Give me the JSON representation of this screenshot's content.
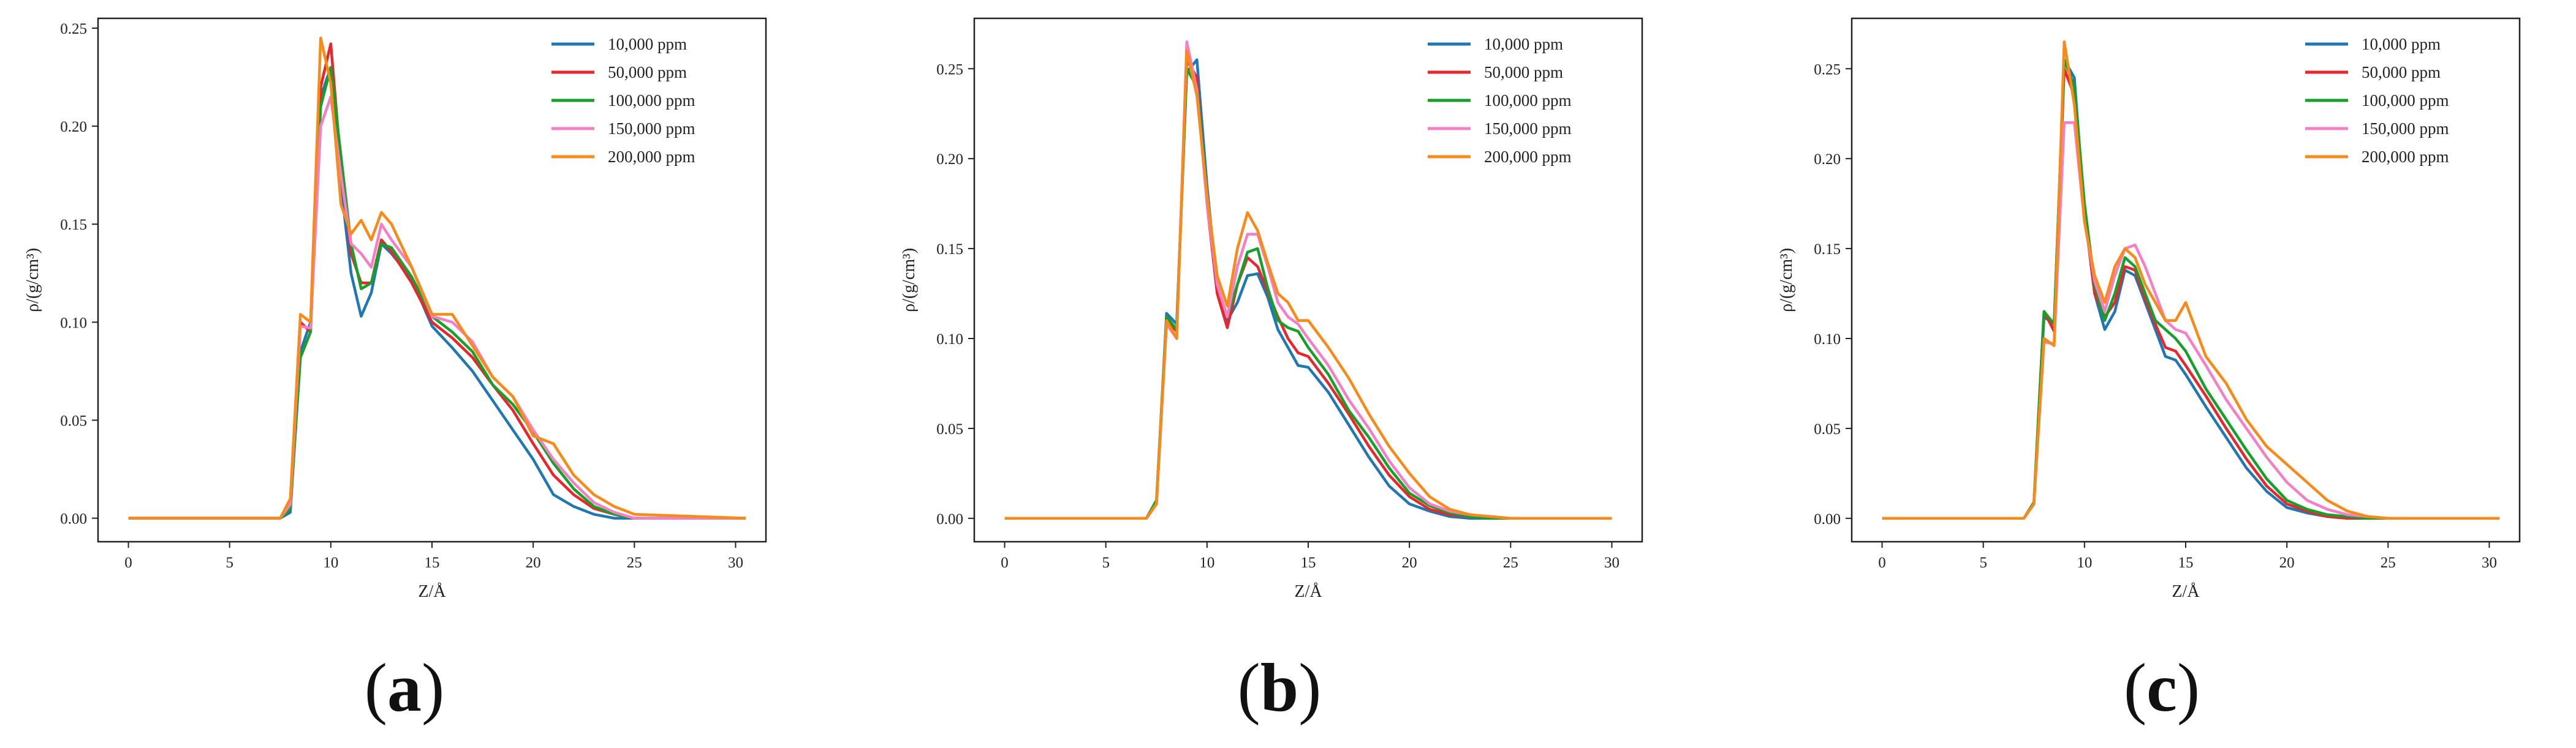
{
  "figure": {
    "colors": {
      "10,000 ppm": "#1f77b4",
      "50,000 ppm": "#e8262b",
      "100,000 ppm": "#16a02a",
      "150,000 ppm": "#f47fc5",
      "200,000 ppm": "#f78a19"
    }
  },
  "chart_data": [
    {
      "panel_label": "a",
      "type": "line",
      "xlabel": "Z/Å",
      "ylabel": "ρ/(g/cm³)",
      "xlim": [
        -1.5,
        31.5
      ],
      "ylim": [
        -0.012,
        0.255
      ],
      "xticks": [
        "0",
        "5",
        "10",
        "15",
        "20",
        "25",
        "30"
      ],
      "yticks": [
        "0.00",
        "0.05",
        "0.10",
        "0.15",
        "0.20",
        "0.25"
      ],
      "legend_position": "top-right",
      "grid": false,
      "series": [
        {
          "name": "10,000 ppm",
          "color": "#1f77b4",
          "x": [
            0,
            7.5,
            8.0,
            8.5,
            9.0,
            9.5,
            10.0,
            10.5,
            11.0,
            11.5,
            12.0,
            12.5,
            13.0,
            14.0,
            15.0,
            16.0,
            17.0,
            18.0,
            19.0,
            20.0,
            21.0,
            22.0,
            23.0,
            24.0,
            25.0,
            30.5
          ],
          "values": [
            0,
            0,
            0.003,
            0.085,
            0.1,
            0.215,
            0.23,
            0.17,
            0.125,
            0.103,
            0.115,
            0.14,
            0.135,
            0.122,
            0.098,
            0.087,
            0.075,
            0.06,
            0.045,
            0.03,
            0.012,
            0.006,
            0.002,
            0.0,
            0.0,
            0
          ]
        },
        {
          "name": "50,000 ppm",
          "color": "#e8262b",
          "x": [
            0,
            7.5,
            8.0,
            8.5,
            9.0,
            9.5,
            10.0,
            10.5,
            11.0,
            11.5,
            12.0,
            12.5,
            13.0,
            14.0,
            15.0,
            16.0,
            17.0,
            18.0,
            19.0,
            20.0,
            21.0,
            22.0,
            23.0,
            24.0,
            25.0,
            30.5
          ],
          "values": [
            0,
            0,
            0.005,
            0.1,
            0.095,
            0.22,
            0.242,
            0.18,
            0.135,
            0.12,
            0.12,
            0.142,
            0.136,
            0.12,
            0.1,
            0.092,
            0.082,
            0.068,
            0.055,
            0.038,
            0.022,
            0.012,
            0.005,
            0.002,
            0.0,
            0
          ]
        },
        {
          "name": "100,000 ppm",
          "color": "#16a02a",
          "x": [
            0,
            7.5,
            8.0,
            8.5,
            9.0,
            9.5,
            10.0,
            10.5,
            11.0,
            11.5,
            12.0,
            12.5,
            13.0,
            14.0,
            15.0,
            16.0,
            17.0,
            18.0,
            19.0,
            20.0,
            21.0,
            22.0,
            23.0,
            24.0,
            25.0,
            30.5
          ],
          "values": [
            0,
            0,
            0.005,
            0.082,
            0.095,
            0.21,
            0.23,
            0.185,
            0.14,
            0.117,
            0.12,
            0.14,
            0.138,
            0.123,
            0.103,
            0.095,
            0.085,
            0.068,
            0.058,
            0.044,
            0.028,
            0.015,
            0.006,
            0.002,
            0.0,
            0
          ]
        },
        {
          "name": "150,000 ppm",
          "color": "#f47fc5",
          "x": [
            0,
            7.5,
            8.0,
            8.5,
            9.0,
            9.5,
            10.0,
            10.5,
            11.0,
            11.5,
            12.0,
            12.5,
            13.0,
            14.0,
            15.0,
            16.0,
            17.0,
            18.0,
            19.0,
            20.0,
            21.0,
            22.0,
            23.0,
            24.0,
            25.0,
            30.5
          ],
          "values": [
            0,
            0,
            0.007,
            0.098,
            0.097,
            0.2,
            0.215,
            0.175,
            0.14,
            0.135,
            0.128,
            0.15,
            0.142,
            0.128,
            0.103,
            0.1,
            0.09,
            0.072,
            0.062,
            0.045,
            0.03,
            0.018,
            0.008,
            0.003,
            0.0,
            0
          ]
        },
        {
          "name": "200,000 ppm",
          "color": "#f78a19",
          "x": [
            0,
            7.5,
            8.0,
            8.5,
            9.0,
            9.5,
            10.0,
            10.5,
            11.0,
            11.5,
            12.0,
            12.5,
            13.0,
            14.0,
            15.0,
            16.0,
            17.0,
            18.0,
            19.0,
            20.0,
            21.0,
            22.0,
            23.0,
            24.0,
            25.0,
            30.5
          ],
          "values": [
            0,
            0,
            0.01,
            0.104,
            0.1,
            0.245,
            0.222,
            0.16,
            0.145,
            0.152,
            0.142,
            0.156,
            0.15,
            0.128,
            0.104,
            0.104,
            0.088,
            0.072,
            0.062,
            0.042,
            0.038,
            0.022,
            0.012,
            0.006,
            0.002,
            0
          ]
        }
      ]
    },
    {
      "panel_label": "b",
      "type": "line",
      "xlabel": "Z/Å",
      "ylabel": "ρ/(g/cm³)",
      "xlim": [
        -1.5,
        31.5
      ],
      "ylim": [
        -0.013,
        0.278
      ],
      "xticks": [
        "0",
        "5",
        "10",
        "15",
        "20",
        "25",
        "30"
      ],
      "yticks": [
        "0.00",
        "0.05",
        "0.10",
        "0.15",
        "0.20",
        "0.25"
      ],
      "legend_position": "top-right",
      "grid": false,
      "series": [
        {
          "name": "10,000 ppm",
          "color": "#1f77b4",
          "x": [
            0,
            7.0,
            7.5,
            8.0,
            8.5,
            9.0,
            9.5,
            10.0,
            10.5,
            11.0,
            11.5,
            12.0,
            12.5,
            13.0,
            13.5,
            14.0,
            14.5,
            15.0,
            16.0,
            17.0,
            18.0,
            19.0,
            20.0,
            21.0,
            22.0,
            23.0,
            24.0,
            25.0,
            30.0
          ],
          "values": [
            0,
            0,
            0.008,
            0.114,
            0.108,
            0.248,
            0.255,
            0.185,
            0.128,
            0.11,
            0.12,
            0.135,
            0.136,
            0.123,
            0.105,
            0.095,
            0.085,
            0.084,
            0.07,
            0.052,
            0.034,
            0.018,
            0.008,
            0.004,
            0.001,
            0.0,
            0.0,
            0.0,
            0
          ]
        },
        {
          "name": "50,000 ppm",
          "color": "#e8262b",
          "x": [
            0,
            7.0,
            7.5,
            8.0,
            8.5,
            9.0,
            9.5,
            10.0,
            10.5,
            11.0,
            11.5,
            12.0,
            12.5,
            13.0,
            13.5,
            14.0,
            14.5,
            15.0,
            16.0,
            17.0,
            18.0,
            19.0,
            20.0,
            21.0,
            22.0,
            23.0,
            24.0,
            25.0,
            30.0
          ],
          "values": [
            0,
            0,
            0.008,
            0.11,
            0.104,
            0.255,
            0.245,
            0.175,
            0.125,
            0.106,
            0.13,
            0.145,
            0.14,
            0.126,
            0.112,
            0.1,
            0.092,
            0.09,
            0.075,
            0.058,
            0.04,
            0.024,
            0.012,
            0.005,
            0.002,
            0.001,
            0.0,
            0.0,
            0
          ]
        },
        {
          "name": "100,000 ppm",
          "color": "#16a02a",
          "x": [
            0,
            7.0,
            7.5,
            8.0,
            8.5,
            9.0,
            9.5,
            10.0,
            10.5,
            11.0,
            11.5,
            12.0,
            12.5,
            13.0,
            13.5,
            14.0,
            14.5,
            15.0,
            16.0,
            17.0,
            18.0,
            19.0,
            20.0,
            21.0,
            22.0,
            23.0,
            24.0,
            25.0,
            30.0
          ],
          "values": [
            0,
            0,
            0.01,
            0.112,
            0.105,
            0.25,
            0.24,
            0.18,
            0.13,
            0.112,
            0.13,
            0.148,
            0.15,
            0.128,
            0.11,
            0.106,
            0.104,
            0.095,
            0.08,
            0.06,
            0.045,
            0.028,
            0.014,
            0.007,
            0.003,
            0.001,
            0.0,
            0.0,
            0
          ]
        },
        {
          "name": "150,000 ppm",
          "color": "#f47fc5",
          "x": [
            0,
            7.0,
            7.5,
            8.0,
            8.5,
            9.0,
            9.5,
            10.0,
            10.5,
            11.0,
            11.5,
            12.0,
            12.5,
            13.0,
            13.5,
            14.0,
            14.5,
            15.0,
            16.0,
            17.0,
            18.0,
            19.0,
            20.0,
            21.0,
            22.0,
            23.0,
            24.0,
            25.0,
            30.0
          ],
          "values": [
            0,
            0,
            0.008,
            0.108,
            0.1,
            0.265,
            0.238,
            0.175,
            0.13,
            0.112,
            0.14,
            0.158,
            0.158,
            0.14,
            0.12,
            0.112,
            0.108,
            0.1,
            0.085,
            0.066,
            0.05,
            0.032,
            0.017,
            0.008,
            0.004,
            0.002,
            0.001,
            0.0,
            0
          ]
        },
        {
          "name": "200,000 ppm",
          "color": "#f78a19",
          "x": [
            0,
            7.0,
            7.5,
            8.0,
            8.5,
            9.0,
            9.5,
            10.0,
            10.5,
            11.0,
            11.5,
            12.0,
            12.5,
            13.0,
            13.5,
            14.0,
            14.5,
            15.0,
            16.0,
            17.0,
            18.0,
            19.0,
            20.0,
            21.0,
            22.0,
            23.0,
            24.0,
            25.0,
            30.0
          ],
          "values": [
            0,
            0,
            0.008,
            0.11,
            0.1,
            0.26,
            0.235,
            0.18,
            0.135,
            0.118,
            0.15,
            0.17,
            0.16,
            0.142,
            0.125,
            0.12,
            0.11,
            0.11,
            0.095,
            0.078,
            0.058,
            0.04,
            0.025,
            0.012,
            0.005,
            0.002,
            0.001,
            0.0,
            0
          ]
        }
      ]
    },
    {
      "panel_label": "c",
      "type": "line",
      "xlabel": "Z/Å",
      "ylabel": "ρ/(g/cm³)",
      "xlim": [
        -1.5,
        31.5
      ],
      "ylim": [
        -0.013,
        0.278
      ],
      "xticks": [
        "0",
        "5",
        "10",
        "15",
        "20",
        "25",
        "30"
      ],
      "yticks": [
        "0.00",
        "0.05",
        "0.10",
        "0.15",
        "0.20",
        "0.25"
      ],
      "legend_position": "top-right",
      "grid": false,
      "series": [
        {
          "name": "10,000 ppm",
          "color": "#1f77b4",
          "x": [
            0,
            7.0,
            7.5,
            8.0,
            8.5,
            9.0,
            9.5,
            10.0,
            10.5,
            11.0,
            11.5,
            12.0,
            12.5,
            13.0,
            13.5,
            14.0,
            14.5,
            15.0,
            16.0,
            17.0,
            18.0,
            19.0,
            20.0,
            21.0,
            22.0,
            23.0,
            24.0,
            25.0,
            30.5
          ],
          "values": [
            0,
            0,
            0.008,
            0.112,
            0.108,
            0.255,
            0.245,
            0.17,
            0.125,
            0.105,
            0.115,
            0.138,
            0.135,
            0.12,
            0.105,
            0.09,
            0.088,
            0.08,
            0.062,
            0.045,
            0.028,
            0.015,
            0.006,
            0.003,
            0.001,
            0.0,
            0.0,
            0.0,
            0
          ]
        },
        {
          "name": "50,000 ppm",
          "color": "#e8262b",
          "x": [
            0,
            7.0,
            7.5,
            8.0,
            8.5,
            9.0,
            9.5,
            10.0,
            10.5,
            11.0,
            11.5,
            12.0,
            12.5,
            13.0,
            13.5,
            14.0,
            14.5,
            15.0,
            16.0,
            17.0,
            18.0,
            19.0,
            20.0,
            21.0,
            22.0,
            23.0,
            24.0,
            25.0,
            30.5
          ],
          "values": [
            0,
            0,
            0.008,
            0.115,
            0.104,
            0.25,
            0.235,
            0.17,
            0.125,
            0.112,
            0.12,
            0.14,
            0.138,
            0.122,
            0.108,
            0.095,
            0.093,
            0.085,
            0.068,
            0.05,
            0.033,
            0.018,
            0.008,
            0.004,
            0.001,
            0.0,
            0.0,
            0.0,
            0
          ]
        },
        {
          "name": "100,000 ppm",
          "color": "#16a02a",
          "x": [
            0,
            7.0,
            7.5,
            8.0,
            8.5,
            9.0,
            9.5,
            10.0,
            10.5,
            11.0,
            11.5,
            12.0,
            12.5,
            13.0,
            13.5,
            14.0,
            14.5,
            15.0,
            16.0,
            17.0,
            18.0,
            19.0,
            20.0,
            21.0,
            22.0,
            23.0,
            24.0,
            25.0,
            30.5
          ],
          "values": [
            0,
            0,
            0.009,
            0.115,
            0.108,
            0.255,
            0.24,
            0.175,
            0.13,
            0.11,
            0.125,
            0.145,
            0.14,
            0.125,
            0.11,
            0.105,
            0.1,
            0.093,
            0.072,
            0.055,
            0.038,
            0.022,
            0.01,
            0.005,
            0.002,
            0.001,
            0.0,
            0.0,
            0
          ]
        },
        {
          "name": "150,000 ppm",
          "color": "#f47fc5",
          "x": [
            0,
            7.0,
            7.5,
            8.0,
            8.5,
            9.0,
            9.5,
            10.0,
            10.5,
            11.0,
            11.5,
            12.0,
            12.5,
            13.0,
            13.5,
            14.0,
            14.5,
            15.0,
            16.0,
            17.0,
            18.0,
            19.0,
            20.0,
            21.0,
            22.0,
            23.0,
            24.0,
            25.0,
            30.5
          ],
          "values": [
            0,
            0,
            0.008,
            0.098,
            0.097,
            0.22,
            0.22,
            0.165,
            0.132,
            0.115,
            0.135,
            0.15,
            0.152,
            0.14,
            0.125,
            0.11,
            0.105,
            0.103,
            0.085,
            0.066,
            0.05,
            0.034,
            0.02,
            0.01,
            0.005,
            0.002,
            0.001,
            0.0,
            0
          ]
        },
        {
          "name": "200,000 ppm",
          "color": "#f78a19",
          "x": [
            0,
            7.0,
            7.5,
            8.0,
            8.5,
            9.0,
            9.5,
            10.0,
            10.5,
            11.0,
            11.5,
            12.0,
            12.5,
            13.0,
            13.5,
            14.0,
            14.5,
            15.0,
            16.0,
            17.0,
            18.0,
            19.0,
            20.0,
            21.0,
            22.0,
            23.0,
            24.0,
            25.0,
            30.5
          ],
          "values": [
            0,
            0,
            0.008,
            0.1,
            0.096,
            0.265,
            0.23,
            0.165,
            0.135,
            0.12,
            0.14,
            0.15,
            0.145,
            0.13,
            0.12,
            0.11,
            0.11,
            0.12,
            0.09,
            0.075,
            0.055,
            0.04,
            0.03,
            0.02,
            0.01,
            0.004,
            0.001,
            0.0,
            0
          ]
        }
      ]
    }
  ]
}
